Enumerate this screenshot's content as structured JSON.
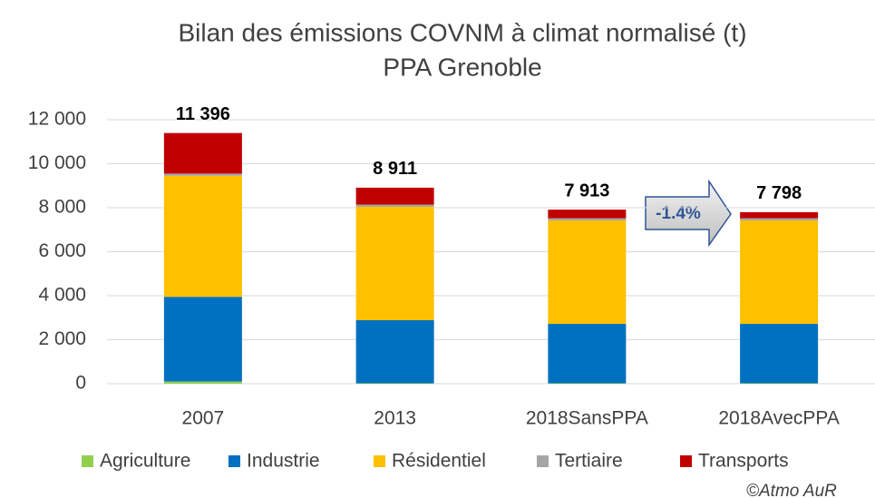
{
  "chart_data": {
    "type": "stacked_bar",
    "title": "Bilan des émissions COVNM  à climat normalisé (t)",
    "subtitle": "PPA Grenoble",
    "categories": [
      "2007",
      "2013",
      "2018SansPPA",
      "2018AvecPPA"
    ],
    "series": [
      {
        "name": "Agriculture",
        "color": "#92d050",
        "values": [
          100,
          20,
          20,
          20
        ]
      },
      {
        "name": "Industrie",
        "color": "#0070c0",
        "values": [
          3850,
          2870,
          2700,
          2700
        ]
      },
      {
        "name": "Résidentiel",
        "color": "#ffc000",
        "values": [
          5500,
          5150,
          4700,
          4700
        ]
      },
      {
        "name": "Tertiaire",
        "color": "#a5a5a5",
        "values": [
          100,
          100,
          100,
          100
        ]
      },
      {
        "name": "Transports",
        "color": "#c00000",
        "values": [
          1846,
          771,
          393,
          278
        ]
      }
    ],
    "totals": [
      11396,
      8911,
      7913,
      7798
    ],
    "total_labels": [
      "11 396",
      "8 911",
      "7 913",
      "7 798"
    ],
    "ylim": [
      0,
      12000
    ],
    "yticks": [
      0,
      {
        "value": 2000,
        "label": "2 000"
      },
      {
        "value": 4000,
        "label": "4 000"
      },
      {
        "value": 6000,
        "label": "6 000"
      },
      {
        "value": 8000,
        "label": "8 000"
      },
      {
        "value": 10000,
        "label": "10 000"
      },
      {
        "value": 12000,
        "label": "12 000"
      }
    ],
    "grid": true,
    "legend": "bottom",
    "annotation": "-1.4%",
    "source": "©Atmo AuR"
  }
}
